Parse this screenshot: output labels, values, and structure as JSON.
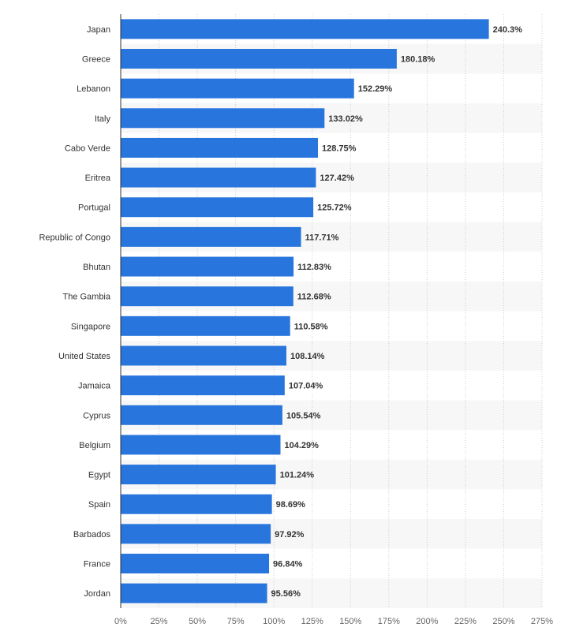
{
  "chart_data": {
    "type": "bar",
    "orientation": "horizontal",
    "categories": [
      "Japan",
      "Greece",
      "Lebanon",
      "Italy",
      "Cabo Verde",
      "Eritrea",
      "Portugal",
      "Republic of Congo",
      "Bhutan",
      "The Gambia",
      "Singapore",
      "United States",
      "Jamaica",
      "Cyprus",
      "Belgium",
      "Egypt",
      "Spain",
      "Barbados",
      "France",
      "Jordan"
    ],
    "values": [
      240.3,
      180.18,
      152.29,
      133.02,
      128.75,
      127.42,
      125.72,
      117.71,
      112.83,
      112.68,
      110.58,
      108.14,
      107.04,
      105.54,
      104.29,
      101.24,
      98.69,
      97.92,
      96.84,
      95.56
    ],
    "value_labels": [
      "240.3%",
      "180.18%",
      "152.29%",
      "133.02%",
      "128.75%",
      "127.42%",
      "125.72%",
      "117.71%",
      "112.83%",
      "112.68%",
      "110.58%",
      "108.14%",
      "107.04%",
      "105.54%",
      "104.29%",
      "101.24%",
      "98.69%",
      "97.92%",
      "96.84%",
      "95.56%"
    ],
    "x_ticks": [
      "0%",
      "25%",
      "50%",
      "75%",
      "100%",
      "125%",
      "150%",
      "175%",
      "200%",
      "225%",
      "250%",
      "275%"
    ],
    "xlim": [
      0,
      275
    ],
    "title": "",
    "xlabel": "",
    "ylabel": "",
    "grid": true,
    "colors": {
      "bar": "#2876dd",
      "stripe": "#f7f7f7",
      "grid": "#cccccc",
      "axis": "#333333"
    }
  }
}
